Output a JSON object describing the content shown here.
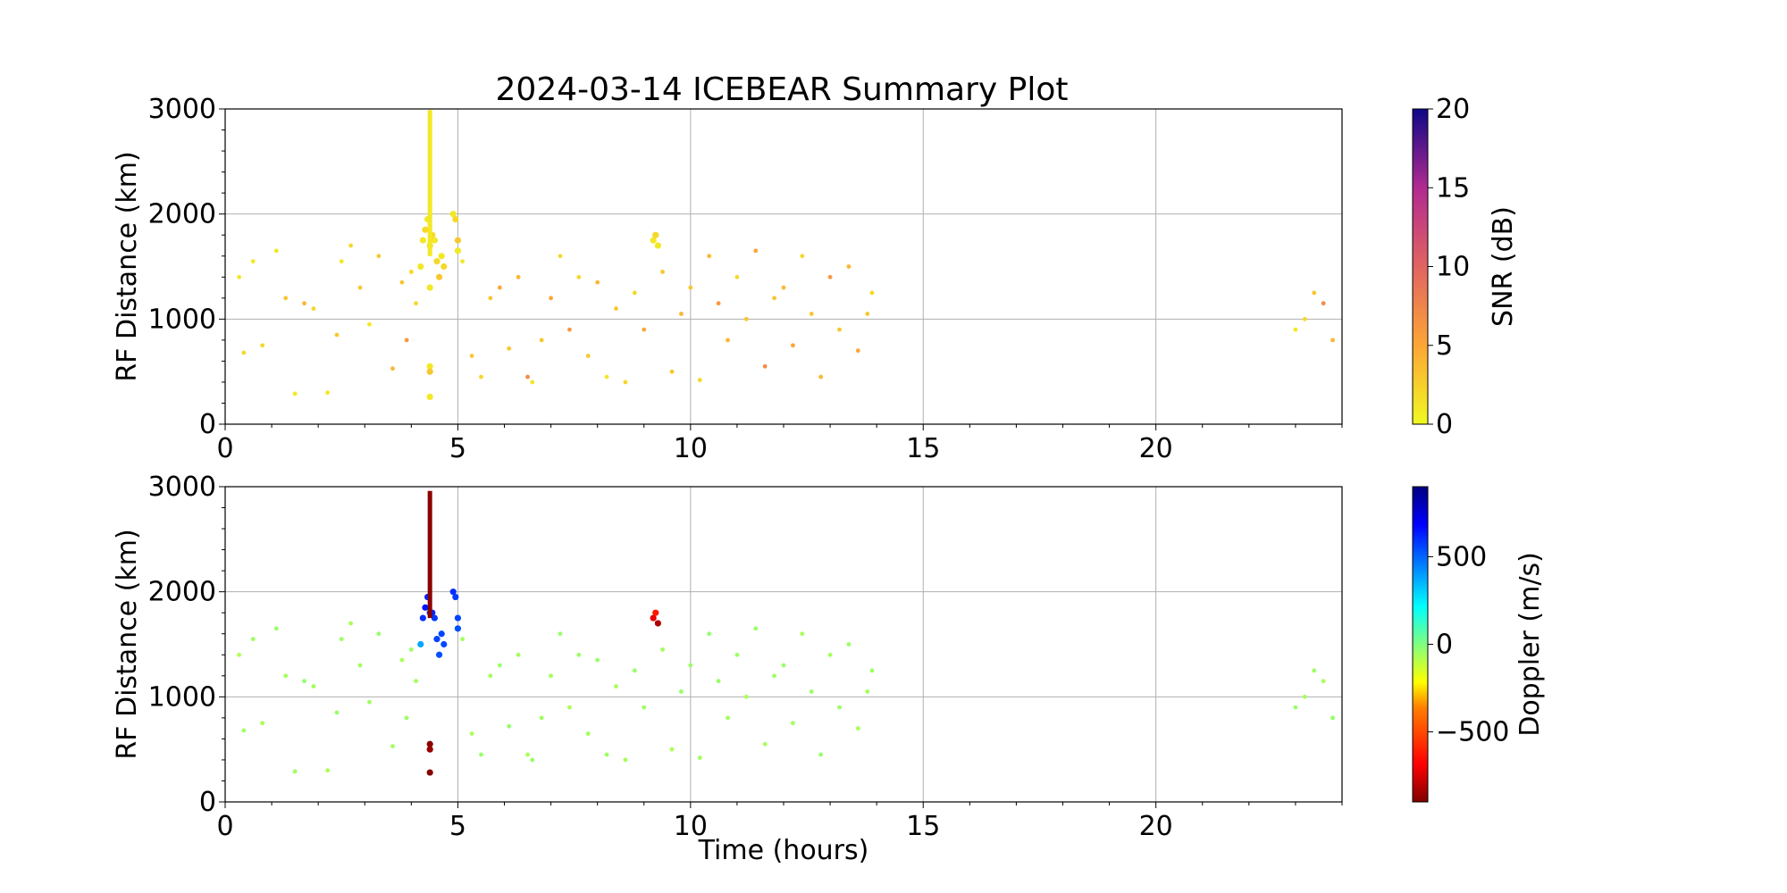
{
  "title": "2024-03-14 ICEBEAR Summary Plot",
  "chart_data": [
    {
      "type": "scatter",
      "panel": "top",
      "ylabel": "RF Distance (km)",
      "xlabel": "",
      "xlim": [
        0,
        24
      ],
      "ylim": [
        0,
        3000
      ],
      "xticks": [
        "0",
        "5",
        "10",
        "15",
        "20"
      ],
      "yticks": [
        "0",
        "1000",
        "2000",
        "3000"
      ],
      "grid": true,
      "colorbar": {
        "label": "SNR (dB)",
        "min": 0,
        "max": 20,
        "ticks": [
          "0",
          "5",
          "10",
          "15",
          "20"
        ],
        "colormap": "plasma_r"
      },
      "series": [
        {
          "x": [
            0.3,
            0.4,
            0.6,
            0.8,
            1.1,
            1.3,
            1.5,
            1.7,
            1.9,
            2.2,
            2.4,
            2.5,
            2.7,
            2.9,
            3.1,
            3.3,
            3.6,
            3.8,
            3.9,
            4.0,
            4.1,
            5.1,
            5.3,
            5.5,
            5.7,
            5.9,
            6.1,
            6.3,
            6.5,
            6.6,
            6.8,
            7.0,
            7.2,
            7.4,
            7.6,
            7.8,
            8.0,
            8.2,
            8.4,
            8.6,
            8.8,
            9.0,
            9.4,
            9.6,
            9.8,
            10.0,
            10.2,
            10.4,
            10.6,
            10.8,
            11.0,
            11.2,
            11.4,
            11.6,
            11.8,
            12.0,
            12.2,
            12.4,
            12.6,
            12.8,
            13.0,
            13.2,
            13.4,
            13.6,
            13.8,
            13.9,
            23.0,
            23.2,
            23.4,
            23.6,
            23.8
          ],
          "y": [
            1400,
            680,
            1550,
            750,
            1650,
            1200,
            290,
            1150,
            1100,
            300,
            850,
            1550,
            1700,
            1300,
            950,
            1600,
            530,
            1350,
            800,
            1450,
            1150,
            1550,
            650,
            450,
            1200,
            1300,
            720,
            1400,
            450,
            400,
            800,
            1200,
            1600,
            900,
            1400,
            650,
            1350,
            450,
            1100,
            400,
            1250,
            900,
            1450,
            500,
            1050,
            1300,
            420,
            1600,
            1150,
            800,
            1400,
            1000,
            1650,
            550,
            1200,
            1300,
            750,
            1600,
            1050,
            450,
            1400,
            900,
            1500,
            700,
            1050,
            1250,
            900,
            1000,
            1250,
            1150,
            800
          ],
          "snr": [
            1,
            2,
            1,
            2,
            1,
            3,
            1,
            4,
            2,
            1,
            3,
            1,
            2,
            3,
            1,
            3,
            4,
            3,
            6,
            2,
            2,
            1,
            3,
            2,
            3,
            5,
            3,
            4,
            7,
            1,
            3,
            5,
            2,
            6,
            2,
            3,
            4,
            1,
            3,
            2,
            2,
            5,
            3,
            3,
            4,
            3,
            2,
            4,
            6,
            4,
            2,
            3,
            5,
            7,
            3,
            4,
            5,
            2,
            3,
            4,
            6,
            3,
            4,
            5,
            3,
            2,
            1,
            2,
            3,
            7,
            4
          ]
        },
        {
          "x": [
            4.2,
            4.25,
            4.3,
            4.35,
            4.4,
            4.4,
            4.4,
            4.4,
            4.4,
            4.45,
            4.5,
            4.55,
            4.6,
            4.65,
            4.7,
            4.9,
            4.95,
            5.0,
            5.0,
            9.2,
            9.25,
            9.3
          ],
          "y": [
            1500,
            1750,
            1850,
            1950,
            1700,
            1300,
            550,
            500,
            260,
            1800,
            1750,
            1550,
            1400,
            1600,
            1500,
            2000,
            1950,
            1750,
            1650,
            1750,
            1800,
            1700
          ],
          "snr": [
            1,
            1,
            2,
            1,
            2,
            1,
            1,
            3,
            1,
            2,
            1,
            2,
            3,
            1,
            2,
            1,
            2,
            3,
            1,
            1,
            2,
            1
          ]
        },
        {
          "x": [
            4.4,
            4.4
          ],
          "y": [
            1600,
            2990
          ],
          "snr": [
            1,
            1
          ],
          "kind": "vertical-streak"
        }
      ]
    },
    {
      "type": "scatter",
      "panel": "bottom",
      "ylabel": "RF Distance (km)",
      "xlabel": "Time (hours)",
      "xlim": [
        0,
        24
      ],
      "ylim": [
        0,
        3000
      ],
      "xticks": [
        "0",
        "5",
        "10",
        "15",
        "20"
      ],
      "yticks": [
        "0",
        "1000",
        "2000",
        "3000"
      ],
      "grid": true,
      "colorbar": {
        "label": "Doppler (m/s)",
        "min": -900,
        "max": 900,
        "ticks": [
          "−500",
          "0",
          "500"
        ],
        "tick_values": [
          -500,
          0,
          500
        ],
        "colormap": "jet_r"
      },
      "series": [
        {
          "x": [
            0.3,
            0.4,
            0.6,
            0.8,
            1.1,
            1.3,
            1.5,
            1.7,
            1.9,
            2.2,
            2.4,
            2.5,
            2.7,
            2.9,
            3.1,
            3.3,
            3.6,
            3.8,
            3.9,
            4.0,
            4.1,
            5.1,
            5.3,
            5.5,
            5.7,
            5.9,
            6.1,
            6.3,
            6.5,
            6.6,
            6.8,
            7.0,
            7.2,
            7.4,
            7.6,
            7.8,
            8.0,
            8.2,
            8.4,
            8.6,
            8.8,
            9.0,
            9.4,
            9.6,
            9.8,
            10.0,
            10.2,
            10.4,
            10.6,
            10.8,
            11.0,
            11.2,
            11.4,
            11.6,
            11.8,
            12.0,
            12.2,
            12.4,
            12.6,
            12.8,
            13.0,
            13.2,
            13.4,
            13.6,
            13.8,
            13.9,
            23.0,
            23.2,
            23.4,
            23.6,
            23.8
          ],
          "y": [
            1400,
            680,
            1550,
            750,
            1650,
            1200,
            290,
            1150,
            1100,
            300,
            850,
            1550,
            1700,
            1300,
            950,
            1600,
            530,
            1350,
            800,
            1450,
            1150,
            1550,
            650,
            450,
            1200,
            1300,
            720,
            1400,
            450,
            400,
            800,
            1200,
            1600,
            900,
            1400,
            650,
            1350,
            450,
            1100,
            400,
            1250,
            900,
            1450,
            500,
            1050,
            1300,
            420,
            1600,
            1150,
            800,
            1400,
            1000,
            1650,
            550,
            1200,
            1300,
            750,
            1600,
            1050,
            450,
            1400,
            900,
            1500,
            700,
            1050,
            1250,
            900,
            1000,
            1250,
            1150,
            800
          ],
          "doppler": [
            -80,
            -60,
            -50,
            -70,
            -40,
            -60,
            -50,
            -30,
            -60,
            -80,
            -40,
            -50,
            -70,
            -60,
            -50,
            -40,
            -60,
            -70,
            -50,
            -40,
            -60,
            -50,
            -70,
            -40,
            -60,
            -50,
            -30,
            -60,
            -70,
            -40,
            -50,
            -60,
            -40,
            -70,
            -50,
            -60,
            -40,
            -50,
            -70,
            -60,
            -40,
            -50,
            -60,
            -70,
            -40,
            -50,
            -60,
            -30,
            -40,
            -60,
            -50,
            -70,
            -40,
            -60,
            -50,
            -40,
            -60,
            -70,
            -50,
            -40,
            -60,
            -50,
            -40,
            -70,
            -60,
            -50,
            -40,
            -60,
            -50,
            -70,
            -40
          ]
        },
        {
          "x": [
            4.2,
            4.25,
            4.3,
            4.35,
            4.4,
            4.45,
            4.5,
            4.55,
            4.6,
            4.65,
            4.7,
            4.9,
            4.95,
            5.0,
            5.0
          ],
          "y": [
            1500,
            1750,
            1850,
            1950,
            1800,
            1800,
            1750,
            1550,
            1400,
            1600,
            1500,
            2000,
            1950,
            1750,
            1650
          ],
          "doppler": [
            380,
            600,
            650,
            620,
            600,
            620,
            580,
            560,
            540,
            560,
            550,
            600,
            580,
            560,
            540
          ]
        },
        {
          "x": [
            4.4,
            4.4,
            4.4,
            9.2,
            9.25,
            9.3
          ],
          "y": [
            550,
            500,
            280,
            1750,
            1800,
            1700
          ],
          "doppler": [
            -880,
            -860,
            -890,
            -720,
            -620,
            -820
          ]
        },
        {
          "x": [
            4.4,
            4.4
          ],
          "y": [
            1750,
            2960
          ],
          "doppler": [
            -880,
            -880
          ],
          "kind": "vertical-streak"
        }
      ]
    }
  ]
}
